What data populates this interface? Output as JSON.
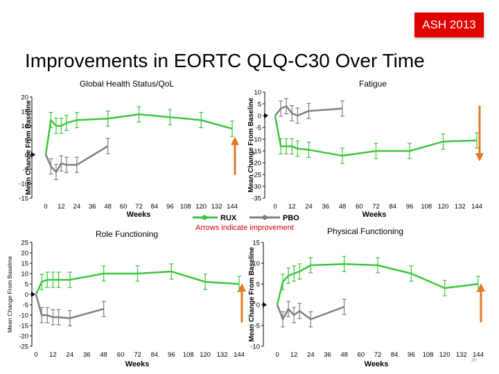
{
  "header": {
    "badge": "ASH 2013",
    "title": "Improvements in EORTC QLQ-C30 Over Time",
    "footnote": "Arrows indicate improvement",
    "page_number": "20"
  },
  "colors": {
    "rux": "#3cc63c",
    "pbo": "#808080",
    "arrow": "#e87722",
    "badge": "#e00000"
  },
  "chart_data": [
    {
      "type": "line",
      "title": "Global Health Status/QoL",
      "xlabel": "Weeks",
      "ylabel": "Mean Change From Baseline",
      "xlim": [
        0,
        144
      ],
      "ylim": [
        -15,
        20
      ],
      "xticks": [
        0,
        12,
        24,
        36,
        48,
        60,
        72,
        84,
        96,
        108,
        120,
        132,
        144
      ],
      "yticks": [
        -15,
        -10,
        -5,
        0,
        5,
        10,
        15,
        20
      ],
      "arrow": "up",
      "series": [
        {
          "name": "RUX",
          "x": [
            0,
            4,
            8,
            12,
            16,
            24,
            48,
            72,
            96,
            120,
            144
          ],
          "y": [
            0,
            12,
            10,
            10,
            11,
            12,
            12.5,
            14,
            13,
            12,
            9
          ]
        },
        {
          "name": "PBO",
          "x": [
            0,
            4,
            8,
            12,
            16,
            24,
            48
          ],
          "y": [
            0,
            -4,
            -6,
            -3,
            -3.5,
            -3.5,
            3
          ]
        }
      ]
    },
    {
      "type": "line",
      "title": "Fatigue",
      "xlabel": "Weeks",
      "ylabel": "Mean Change From Baseline",
      "xlim": [
        0,
        144
      ],
      "ylim": [
        -35,
        10
      ],
      "xticks": [
        0,
        12,
        24,
        36,
        48,
        60,
        72,
        84,
        96,
        108,
        120,
        132,
        144
      ],
      "yticks": [
        -35,
        -30,
        -25,
        -20,
        -15,
        -10,
        -5,
        0,
        5,
        10
      ],
      "arrow": "down",
      "series": [
        {
          "name": "RUX",
          "x": [
            0,
            4,
            8,
            12,
            16,
            24,
            48,
            72,
            96,
            120,
            144
          ],
          "y": [
            0,
            -13,
            -13,
            -13,
            -14,
            -14.5,
            -17,
            -15,
            -15,
            -11,
            -10.5
          ]
        },
        {
          "name": "PBO",
          "x": [
            0,
            4,
            8,
            12,
            16,
            24,
            48
          ],
          "y": [
            0,
            3,
            4,
            1,
            0,
            2,
            3
          ]
        }
      ]
    },
    {
      "type": "line",
      "title": "Role Functioning",
      "xlabel": "Weeks",
      "ylabel": "Mean Change From Baseline",
      "xlim": [
        0,
        144
      ],
      "ylim": [
        -25,
        25
      ],
      "xticks": [
        0,
        12,
        24,
        36,
        48,
        60,
        72,
        84,
        96,
        108,
        120,
        132,
        144
      ],
      "yticks": [
        -25,
        -20,
        -15,
        -10,
        -5,
        0,
        5,
        10,
        15,
        20,
        25
      ],
      "arrow": "up",
      "series": [
        {
          "name": "RUX",
          "x": [
            0,
            4,
            8,
            12,
            16,
            24,
            48,
            72,
            96,
            120,
            144
          ],
          "y": [
            0,
            6,
            7,
            7,
            7,
            7,
            10,
            10,
            11,
            6,
            5
          ]
        },
        {
          "name": "PBO",
          "x": [
            0,
            4,
            8,
            12,
            16,
            24,
            48
          ],
          "y": [
            0,
            -10,
            -10,
            -11,
            -11,
            -11.5,
            -7
          ]
        }
      ]
    },
    {
      "type": "line",
      "title": "Physical Functioning",
      "xlabel": "Weeks",
      "ylabel": "Mean Change From Baseline",
      "xlim": [
        0,
        144
      ],
      "ylim": [
        -10,
        15
      ],
      "xticks": [
        0,
        12,
        24,
        36,
        48,
        60,
        72,
        84,
        96,
        108,
        120,
        132,
        144
      ],
      "yticks": [
        -10,
        -5,
        0,
        5,
        10,
        15
      ],
      "arrow": "up",
      "series": [
        {
          "name": "RUX",
          "x": [
            0,
            4,
            8,
            12,
            16,
            24,
            48,
            72,
            96,
            120,
            144
          ],
          "y": [
            0,
            5.5,
            7,
            7.5,
            8,
            9.5,
            9.8,
            9.5,
            7.5,
            4,
            5
          ]
        },
        {
          "name": "PBO",
          "x": [
            0,
            4,
            8,
            12,
            16,
            24,
            48
          ],
          "y": [
            0,
            -3.5,
            -1,
            -2.5,
            -1.5,
            -3.5,
            -0.5
          ]
        }
      ]
    }
  ],
  "legend": {
    "rux": "RUX",
    "pbo": "PBO"
  }
}
